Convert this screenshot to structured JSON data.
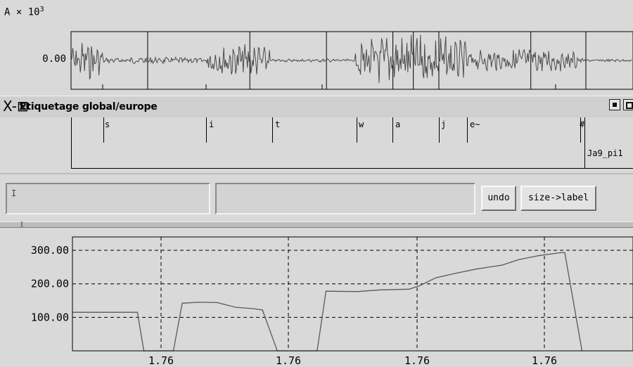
{
  "waveform": {
    "amplitude_unit": "A × 10",
    "amplitude_exponent": "3",
    "zero_label": "0.00",
    "boundaries_s": [
      1.7555,
      1.7575,
      1.759,
      1.7603,
      1.7607,
      1.7612,
      1.763
    ]
  },
  "tier_window": {
    "close_glyph": "X-⊠",
    "title": "Etiquetage  global/europe"
  },
  "labels": {
    "segments": [
      "s",
      "i",
      "t",
      "w",
      "a",
      "j",
      "e~",
      "#"
    ],
    "file_label": "Ja9_pi1"
  },
  "controls": {
    "undo_label": "undo",
    "size_label_button": "size->label",
    "caret": "I"
  },
  "colors": {
    "background": "#d9d9d9",
    "trace": "#5a5a5a",
    "grid": "#000000"
  },
  "chart_data": {
    "type": "line",
    "title": "",
    "xlabel": "",
    "ylabel": "",
    "y_ticks": [
      "100.00",
      "200.00",
      "300.00"
    ],
    "x_ticks": [
      "1.76",
      "1.76",
      "1.76",
      "1.76"
    ],
    "ylim": [
      0,
      340
    ],
    "grid": true,
    "series": [
      {
        "values": [
          [
            0,
            115
          ],
          [
            0.034,
            115
          ],
          [
            0.089,
            115
          ],
          [
            0.132,
            115
          ],
          [
            0.145,
            0
          ],
          [
            0.205,
            0
          ],
          [
            0.223,
            142
          ],
          [
            0.257,
            145
          ],
          [
            0.294,
            144
          ],
          [
            0.332,
            130
          ],
          [
            0.367,
            126
          ],
          [
            0.386,
            122
          ],
          [
            0.416,
            0
          ],
          [
            0.497,
            0
          ],
          [
            0.515,
            178
          ],
          [
            0.578,
            177
          ],
          [
            0.626,
            182
          ],
          [
            0.684,
            184
          ],
          [
            0.706,
            195
          ],
          [
            0.738,
            218
          ],
          [
            0.78,
            232
          ],
          [
            0.82,
            244
          ],
          [
            0.873,
            256
          ],
          [
            0.906,
            272
          ],
          [
            0.946,
            284
          ],
          [
            0.992,
            293
          ],
          [
            1.0,
            293
          ],
          [
            1.035,
            0
          ]
        ]
      }
    ]
  }
}
